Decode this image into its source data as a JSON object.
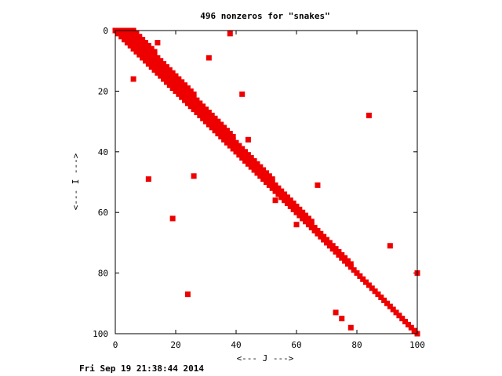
{
  "chart_data": {
    "type": "scatter",
    "title": "496 nonzeros for \"snakes\"",
    "xlabel": "<--- J --->",
    "ylabel": "<--- I --->",
    "xlim": [
      0,
      100
    ],
    "ylim": [
      100,
      0
    ],
    "y_inverted": true,
    "x_ticks": [
      "0",
      "20",
      "40",
      "60",
      "80",
      "100"
    ],
    "y_ticks": [
      "0",
      "20",
      "40",
      "60",
      "80",
      "100"
    ],
    "grid": false,
    "marker": "square",
    "color": "#ee0000",
    "band": [
      [
        0,
        0,
        6
      ],
      [
        1,
        1,
        7
      ],
      [
        2,
        2,
        8
      ],
      [
        3,
        3,
        9
      ],
      [
        4,
        4,
        10
      ],
      [
        5,
        5,
        11
      ],
      [
        6,
        6,
        12
      ],
      [
        7,
        7,
        13
      ],
      [
        8,
        8,
        13
      ],
      [
        9,
        9,
        14
      ],
      [
        10,
        10,
        15
      ],
      [
        11,
        11,
        16
      ],
      [
        12,
        12,
        17
      ],
      [
        13,
        13,
        18
      ],
      [
        14,
        14,
        19
      ],
      [
        15,
        15,
        20
      ],
      [
        16,
        16,
        21
      ],
      [
        17,
        17,
        22
      ],
      [
        18,
        18,
        23
      ],
      [
        19,
        19,
        24
      ],
      [
        20,
        20,
        25
      ],
      [
        21,
        21,
        26
      ],
      [
        22,
        22,
        26
      ],
      [
        23,
        23,
        27
      ],
      [
        24,
        24,
        28
      ],
      [
        25,
        25,
        29
      ],
      [
        26,
        26,
        30
      ],
      [
        27,
        27,
        31
      ],
      [
        28,
        28,
        32
      ],
      [
        29,
        29,
        33
      ],
      [
        30,
        30,
        34
      ],
      [
        31,
        31,
        35
      ],
      [
        32,
        32,
        36
      ],
      [
        33,
        33,
        37
      ],
      [
        34,
        34,
        38
      ],
      [
        35,
        35,
        39
      ],
      [
        36,
        36,
        39
      ],
      [
        37,
        37,
        40
      ],
      [
        38,
        38,
        41
      ],
      [
        39,
        39,
        42
      ],
      [
        40,
        40,
        43
      ],
      [
        41,
        41,
        44
      ],
      [
        42,
        42,
        45
      ],
      [
        43,
        43,
        46
      ],
      [
        44,
        44,
        47
      ],
      [
        45,
        45,
        48
      ],
      [
        46,
        46,
        49
      ],
      [
        47,
        47,
        50
      ],
      [
        48,
        48,
        51
      ],
      [
        49,
        49,
        52
      ],
      [
        50,
        50,
        52
      ],
      [
        51,
        51,
        53
      ],
      [
        52,
        52,
        54
      ],
      [
        53,
        53,
        55
      ],
      [
        54,
        54,
        56
      ],
      [
        55,
        55,
        57
      ],
      [
        56,
        56,
        58
      ],
      [
        57,
        57,
        59
      ],
      [
        58,
        58,
        60
      ],
      [
        59,
        59,
        61
      ],
      [
        60,
        60,
        62
      ],
      [
        61,
        61,
        63
      ],
      [
        62,
        62,
        64
      ],
      [
        63,
        63,
        65
      ],
      [
        64,
        64,
        65
      ],
      [
        65,
        65,
        66
      ],
      [
        66,
        66,
        67
      ],
      [
        67,
        67,
        68
      ],
      [
        68,
        68,
        69
      ],
      [
        69,
        69,
        70
      ],
      [
        70,
        70,
        71
      ],
      [
        71,
        71,
        72
      ],
      [
        72,
        72,
        73
      ],
      [
        73,
        73,
        74
      ],
      [
        74,
        74,
        75
      ],
      [
        75,
        75,
        76
      ],
      [
        76,
        76,
        77
      ],
      [
        77,
        77,
        78
      ],
      [
        78,
        78,
        78
      ],
      [
        79,
        79,
        79
      ],
      [
        80,
        80,
        80
      ],
      [
        81,
        81,
        81
      ],
      [
        82,
        82,
        82
      ],
      [
        83,
        83,
        83
      ],
      [
        84,
        84,
        84
      ],
      [
        85,
        85,
        85
      ],
      [
        86,
        86,
        86
      ],
      [
        87,
        87,
        87
      ],
      [
        88,
        88,
        88
      ],
      [
        89,
        89,
        89
      ],
      [
        90,
        90,
        90
      ],
      [
        91,
        91,
        91
      ],
      [
        92,
        92,
        92
      ],
      [
        93,
        93,
        93
      ],
      [
        94,
        94,
        94
      ],
      [
        95,
        95,
        95
      ],
      [
        96,
        96,
        96
      ],
      [
        97,
        97,
        97
      ],
      [
        98,
        98,
        98
      ],
      [
        99,
        99,
        99
      ]
    ],
    "outliers": [
      {
        "x": 38,
        "y": 1
      },
      {
        "x": 14,
        "y": 4
      },
      {
        "x": 31,
        "y": 9
      },
      {
        "x": 6,
        "y": 16
      },
      {
        "x": 42,
        "y": 21
      },
      {
        "x": 84,
        "y": 28
      },
      {
        "x": 44,
        "y": 36
      },
      {
        "x": 26,
        "y": 48
      },
      {
        "x": 11,
        "y": 49
      },
      {
        "x": 67,
        "y": 51
      },
      {
        "x": 53,
        "y": 56
      },
      {
        "x": 19,
        "y": 62
      },
      {
        "x": 60,
        "y": 64
      },
      {
        "x": 91,
        "y": 71
      },
      {
        "x": 100,
        "y": 80
      },
      {
        "x": 24,
        "y": 87
      },
      {
        "x": 73,
        "y": 93
      },
      {
        "x": 75,
        "y": 95
      },
      {
        "x": 78,
        "y": 98
      },
      {
        "x": 100,
        "y": 100
      }
    ]
  },
  "footer": {
    "timestamp": "Fri Sep 19 21:38:44 2014"
  }
}
